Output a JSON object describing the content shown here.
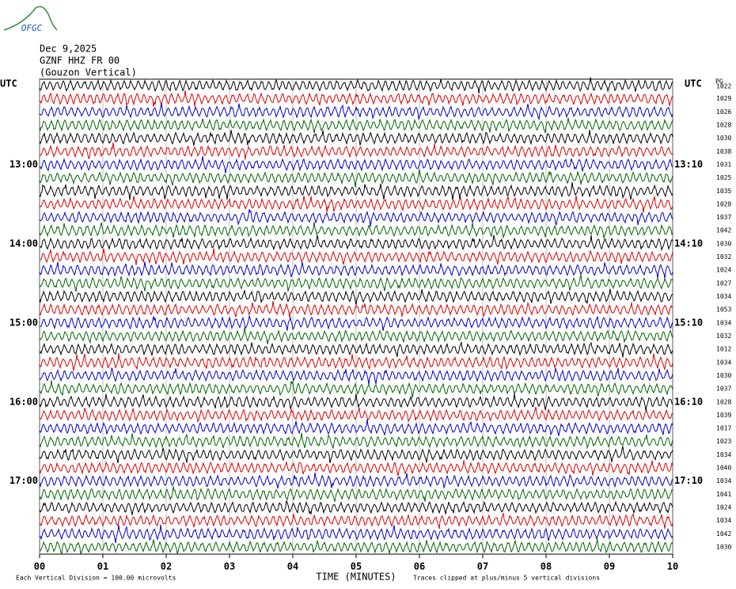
{
  "chart_data": {
    "type": "helicorder",
    "logo": "OFGC",
    "title": "Dec 9,2025",
    "subtitle": [
      "GZNF HHZ FR 00",
      "(Gouzon Vertical)"
    ],
    "corner_label": "PG",
    "xlabel": "TIME (MINUTES)",
    "xlim": [
      0,
      10
    ],
    "xticks": [
      {
        "value": 0,
        "label": "00"
      },
      {
        "value": 1,
        "label": "01"
      },
      {
        "value": 2,
        "label": "02"
      },
      {
        "value": 3,
        "label": "03"
      },
      {
        "value": 4,
        "label": "04"
      },
      {
        "value": 5,
        "label": "05"
      },
      {
        "value": 6,
        "label": "06"
      },
      {
        "value": 7,
        "label": "07"
      },
      {
        "value": 8,
        "label": "08"
      },
      {
        "value": 9,
        "label": "09"
      },
      {
        "value": 10,
        "label": "10"
      }
    ],
    "grid": true,
    "trace_colors": [
      "#000000",
      "#dd0000",
      "#0000cc",
      "#006600"
    ],
    "row_labels_left": [
      "UTC",
      null,
      null,
      null,
      null,
      null,
      "13:00",
      null,
      null,
      null,
      null,
      null,
      "14:00",
      null,
      null,
      null,
      null,
      null,
      "15:00",
      null,
      null,
      null,
      null,
      null,
      "16:00",
      null,
      null,
      null,
      null,
      null,
      "17:00",
      null,
      null,
      null,
      null,
      null
    ],
    "row_labels_right": [
      "UTC",
      null,
      null,
      null,
      null,
      null,
      "13:10",
      null,
      null,
      null,
      null,
      null,
      "14:10",
      null,
      null,
      null,
      null,
      null,
      "15:10",
      null,
      null,
      null,
      null,
      null,
      "16:10",
      null,
      null,
      null,
      null,
      null,
      "17:10",
      null,
      null,
      null,
      null,
      null
    ],
    "row_values": [
      1022,
      1029,
      1026,
      1028,
      1030,
      1038,
      1031,
      1025,
      1035,
      1028,
      1037,
      1042,
      1030,
      1032,
      1024,
      1027,
      1034,
      1053,
      1034,
      1032,
      1012,
      1034,
      1030,
      1037,
      1028,
      1039,
      1017,
      1023,
      1034,
      1040,
      1034,
      1041,
      1024,
      1034,
      1042,
      1030
    ],
    "footnote_left": "Each Vertical Division =  100.00 microvolts",
    "footnote_right": "Traces clipped at plus/minus 5 vertical divisions"
  }
}
